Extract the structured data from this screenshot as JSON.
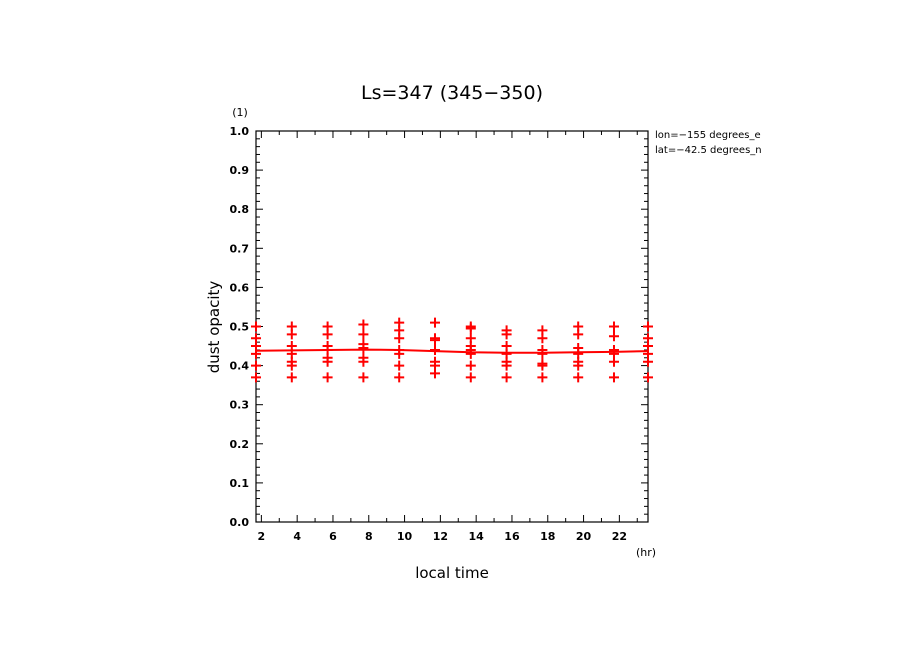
{
  "chart_data": {
    "type": "scatter",
    "title": "Ls=347 (345−350)",
    "xlabel": "local time",
    "ylabel": "dust opacity",
    "x_unit": "(hr)",
    "y_unit": "(1)",
    "xlim": [
      1.7,
      23.6
    ],
    "ylim": [
      0.0,
      1.0
    ],
    "x_ticks": [
      2,
      4,
      6,
      8,
      10,
      12,
      14,
      16,
      18,
      20,
      22
    ],
    "y_ticks": [
      0.0,
      0.1,
      0.2,
      0.3,
      0.4,
      0.5,
      0.6,
      0.7,
      0.8,
      0.9,
      1.0
    ],
    "annotations": [
      "lon=−155 degrees_e",
      "lat=−42.5 degrees_n"
    ],
    "grid": false,
    "color": "#ff0000",
    "series": [
      {
        "kind": "points",
        "groups": [
          {
            "x": 1.7,
            "y": [
              0.5,
              0.47,
              0.45,
              0.43,
              0.4,
              0.37
            ]
          },
          {
            "x": 3.7,
            "y": [
              0.5,
              0.48,
              0.45,
              0.43,
              0.41,
              0.4,
              0.37
            ]
          },
          {
            "x": 5.7,
            "y": [
              0.5,
              0.48,
              0.45,
              0.44,
              0.42,
              0.41,
              0.37
            ]
          },
          {
            "x": 7.7,
            "y": [
              0.505,
              0.48,
              0.455,
              0.445,
              0.42,
              0.41,
              0.37
            ]
          },
          {
            "x": 9.7,
            "y": [
              0.51,
              0.49,
              0.47,
              0.44,
              0.43,
              0.4,
              0.37
            ]
          },
          {
            "x": 11.7,
            "y": [
              0.51,
              0.47,
              0.465,
              0.44,
              0.41,
              0.4,
              0.38
            ]
          },
          {
            "x": 13.7,
            "y": [
              0.5,
              0.495,
              0.47,
              0.45,
              0.44,
              0.43,
              0.4,
              0.37
            ]
          },
          {
            "x": 15.7,
            "y": [
              0.49,
              0.48,
              0.45,
              0.43,
              0.41,
              0.4,
              0.37
            ]
          },
          {
            "x": 17.7,
            "y": [
              0.49,
              0.47,
              0.44,
              0.43,
              0.405,
              0.4,
              0.37
            ]
          },
          {
            "x": 19.7,
            "y": [
              0.5,
              0.48,
              0.445,
              0.43,
              0.41,
              0.4,
              0.37
            ]
          },
          {
            "x": 21.7,
            "y": [
              0.5,
              0.475,
              0.44,
              0.43,
              0.41,
              0.37
            ]
          },
          {
            "x": 23.6,
            "y": [
              0.5,
              0.47,
              0.45,
              0.43,
              0.41,
              0.37
            ]
          }
        ]
      },
      {
        "kind": "line",
        "x": [
          1.7,
          3.7,
          5.7,
          7.7,
          9.7,
          11.7,
          13.7,
          15.7,
          17.7,
          19.7,
          21.7,
          23.6
        ],
        "y": [
          0.438,
          0.439,
          0.44,
          0.441,
          0.44,
          0.437,
          0.434,
          0.433,
          0.433,
          0.434,
          0.435,
          0.437
        ]
      }
    ]
  }
}
